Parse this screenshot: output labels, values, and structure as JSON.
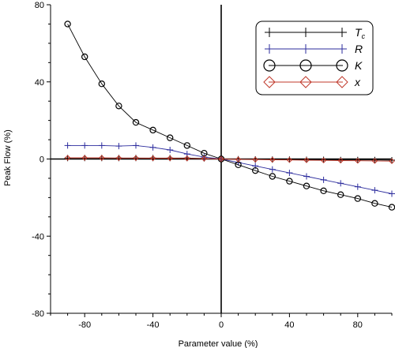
{
  "chart_data": {
    "type": "line",
    "xlabel": "Parameter value (%)",
    "ylabel": "Peak Flow (%)",
    "xlim": [
      -100,
      100
    ],
    "ylim": [
      -80,
      80
    ],
    "xticks": [
      -80,
      -40,
      0,
      40,
      80
    ],
    "yticks": [
      -80,
      -40,
      0,
      40,
      80
    ],
    "x": [
      -90,
      -80,
      -70,
      -60,
      -50,
      -40,
      -30,
      -20,
      -10,
      0,
      10,
      20,
      30,
      40,
      50,
      60,
      70,
      80,
      90,
      100
    ],
    "legend_position": "top-right",
    "series": [
      {
        "name": "Tc",
        "legend_main": "T",
        "legend_sub": "c",
        "color": "#000000",
        "marker": "plus",
        "values": [
          0.5,
          0.5,
          0.5,
          0.5,
          0.5,
          0.5,
          0.5,
          0.5,
          0.3,
          0,
          -0.1,
          -0.2,
          -0.3,
          -0.3,
          -0.4,
          -0.4,
          -0.5,
          -0.5,
          -0.5,
          -0.6
        ]
      },
      {
        "name": "R",
        "legend_main": "R",
        "legend_sub": "",
        "color": "#2d2d9e",
        "marker": "plus",
        "values": [
          7,
          7,
          7,
          6.7,
          7,
          6,
          4.7,
          2.6,
          1,
          0,
          -1.8,
          -3.6,
          -5.4,
          -7.2,
          -9,
          -10.8,
          -12.6,
          -14.4,
          -16.2,
          -18
        ]
      },
      {
        "name": "K",
        "legend_main": "K",
        "legend_sub": "",
        "color": "#000000",
        "marker": "circle",
        "values": [
          70,
          53,
          39,
          27.5,
          19,
          15,
          11,
          7,
          3,
          0,
          -3,
          -6,
          -9,
          -11.5,
          -14,
          -16.5,
          -18.5,
          -20.5,
          -23,
          -25
        ]
      },
      {
        "name": "x",
        "legend_main": "x",
        "legend_sub": "",
        "color": "#c0392b",
        "marker": "diamond",
        "values": [
          0.6,
          0.6,
          0.6,
          0.5,
          0.5,
          0.4,
          0.4,
          0.3,
          0.2,
          0,
          -0.2,
          -0.3,
          -0.4,
          -0.5,
          -0.6,
          -0.7,
          -0.8,
          -0.9,
          -1,
          -1.1
        ]
      }
    ]
  }
}
